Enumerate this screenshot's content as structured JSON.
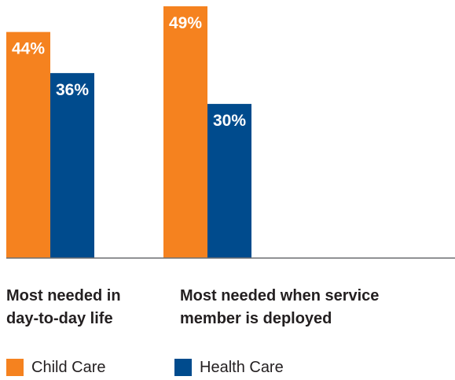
{
  "chart_data": {
    "type": "bar",
    "categories": [
      "Most needed in\nday-to-day life",
      "Most needed when service\nmember is deployed"
    ],
    "series": [
      {
        "name": "Child Care",
        "color": "#f5821f",
        "values": [
          44,
          49
        ],
        "labels": [
          "44%",
          "49%"
        ]
      },
      {
        "name": "Health Care",
        "color": "#004b8d",
        "values": [
          36,
          30
        ],
        "labels": [
          "36%",
          "30%"
        ]
      }
    ],
    "title": "",
    "xlabel": "",
    "ylabel": "",
    "ylim": [
      0,
      49
    ],
    "grid": false,
    "legend_position": "bottom-left"
  }
}
